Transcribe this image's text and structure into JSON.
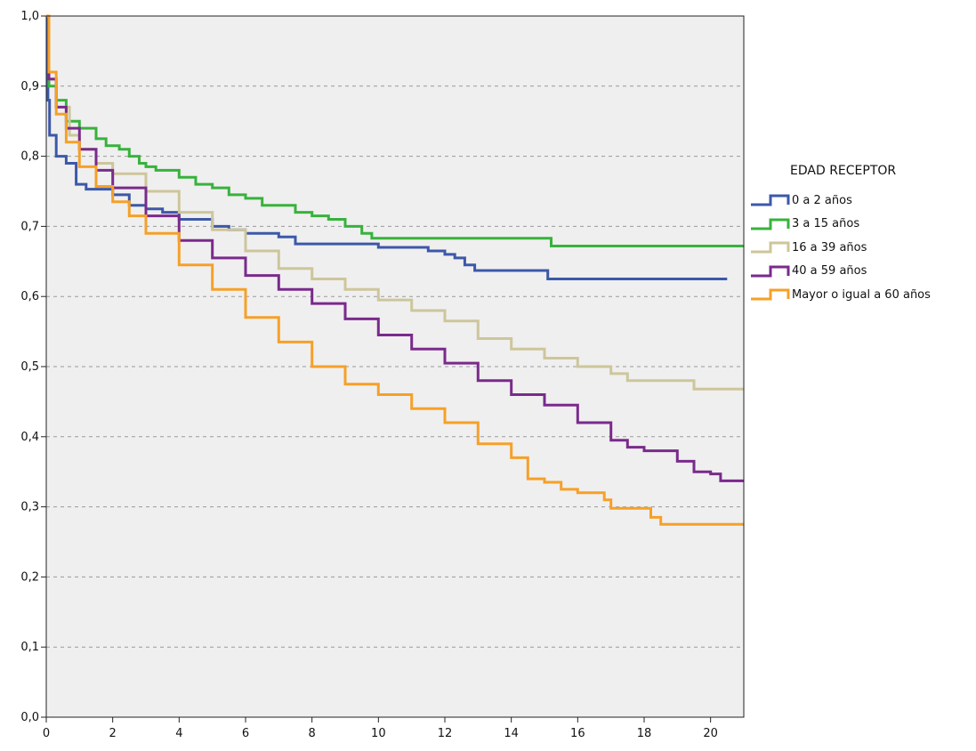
{
  "chart_data": {
    "type": "line",
    "title": "",
    "xlabel": "",
    "ylabel": "",
    "xlim": [
      0,
      21
    ],
    "ylim": [
      0.0,
      1.0
    ],
    "x_ticks": [
      "0",
      "2",
      "4",
      "6",
      "8",
      "10",
      "12",
      "14",
      "16",
      "18",
      "20"
    ],
    "y_ticks": [
      "0,0",
      "0,1",
      "0,2",
      "0,3",
      "0,4",
      "0,5",
      "0,6",
      "0,7",
      "0,8",
      "0,9",
      "1,0"
    ],
    "grid": "horizontal dashed",
    "background": "#efefef",
    "legend": {
      "title": "EDAD RECEPTOR",
      "placement": "right"
    },
    "series": [
      {
        "name": "0 a 2 años",
        "color": "#3c58a8",
        "points": [
          [
            0,
            1.0
          ],
          [
            0.05,
            0.88
          ],
          [
            0.1,
            0.83
          ],
          [
            0.3,
            0.8
          ],
          [
            0.6,
            0.79
          ],
          [
            0.9,
            0.76
          ],
          [
            1.2,
            0.753
          ],
          [
            2,
            0.745
          ],
          [
            2.5,
            0.73
          ],
          [
            3,
            0.725
          ],
          [
            3.5,
            0.72
          ],
          [
            4,
            0.71
          ],
          [
            5,
            0.7
          ],
          [
            5.5,
            0.695
          ],
          [
            6,
            0.69
          ],
          [
            7,
            0.685
          ],
          [
            7.5,
            0.675
          ],
          [
            9,
            0.675
          ],
          [
            10,
            0.67
          ],
          [
            11.2,
            0.67
          ],
          [
            11.5,
            0.665
          ],
          [
            12,
            0.66
          ],
          [
            12.3,
            0.655
          ],
          [
            12.6,
            0.645
          ],
          [
            12.9,
            0.637
          ],
          [
            15,
            0.637
          ],
          [
            15.1,
            0.625
          ],
          [
            20.5,
            0.625
          ]
        ]
      },
      {
        "name": "3 a 15 años",
        "color": "#38b23c",
        "points": [
          [
            0,
            1.0
          ],
          [
            0.08,
            0.9
          ],
          [
            0.3,
            0.88
          ],
          [
            0.6,
            0.85
          ],
          [
            1,
            0.84
          ],
          [
            1.5,
            0.825
          ],
          [
            1.8,
            0.815
          ],
          [
            2.2,
            0.81
          ],
          [
            2.5,
            0.8
          ],
          [
            2.8,
            0.79
          ],
          [
            3,
            0.785
          ],
          [
            3.3,
            0.78
          ],
          [
            4,
            0.77
          ],
          [
            4.5,
            0.76
          ],
          [
            5,
            0.755
          ],
          [
            5.5,
            0.745
          ],
          [
            6,
            0.74
          ],
          [
            6.5,
            0.73
          ],
          [
            7,
            0.73
          ],
          [
            7.5,
            0.72
          ],
          [
            8,
            0.715
          ],
          [
            8.5,
            0.71
          ],
          [
            9,
            0.7
          ],
          [
            9.5,
            0.69
          ],
          [
            9.8,
            0.683
          ],
          [
            15.1,
            0.683
          ],
          [
            15.2,
            0.672
          ],
          [
            21,
            0.672
          ]
        ]
      },
      {
        "name": "16 a 39 años",
        "color": "#cdc69b",
        "points": [
          [
            0,
            1.0
          ],
          [
            0.08,
            0.91
          ],
          [
            0.3,
            0.87
          ],
          [
            0.7,
            0.83
          ],
          [
            1,
            0.81
          ],
          [
            1.5,
            0.79
          ],
          [
            2,
            0.775
          ],
          [
            3,
            0.75
          ],
          [
            4,
            0.72
          ],
          [
            5,
            0.695
          ],
          [
            6,
            0.665
          ],
          [
            7,
            0.64
          ],
          [
            8,
            0.625
          ],
          [
            9,
            0.61
          ],
          [
            10,
            0.595
          ],
          [
            11,
            0.58
          ],
          [
            12,
            0.565
          ],
          [
            13,
            0.54
          ],
          [
            14,
            0.525
          ],
          [
            15,
            0.512
          ],
          [
            16,
            0.5
          ],
          [
            17,
            0.49
          ],
          [
            17.5,
            0.48
          ],
          [
            19,
            0.48
          ],
          [
            19.5,
            0.468
          ],
          [
            21,
            0.468
          ]
        ]
      },
      {
        "name": "40 a 59 años",
        "color": "#7a2a8c",
        "points": [
          [
            0,
            1.0
          ],
          [
            0.08,
            0.91
          ],
          [
            0.3,
            0.87
          ],
          [
            0.6,
            0.84
          ],
          [
            1,
            0.81
          ],
          [
            1.5,
            0.78
          ],
          [
            2,
            0.755
          ],
          [
            3,
            0.715
          ],
          [
            4,
            0.68
          ],
          [
            5,
            0.655
          ],
          [
            6,
            0.63
          ],
          [
            7,
            0.61
          ],
          [
            8,
            0.59
          ],
          [
            9,
            0.568
          ],
          [
            10,
            0.545
          ],
          [
            11,
            0.525
          ],
          [
            12,
            0.505
          ],
          [
            13,
            0.48
          ],
          [
            14,
            0.46
          ],
          [
            15,
            0.445
          ],
          [
            16,
            0.42
          ],
          [
            17,
            0.395
          ],
          [
            17.5,
            0.385
          ],
          [
            18,
            0.38
          ],
          [
            19,
            0.365
          ],
          [
            19.5,
            0.35
          ],
          [
            20,
            0.347
          ],
          [
            20.3,
            0.337
          ],
          [
            21,
            0.337
          ]
        ]
      },
      {
        "name": "Mayor o igual a 60 años",
        "color": "#f6a028",
        "points": [
          [
            0,
            1.0
          ],
          [
            0.08,
            0.92
          ],
          [
            0.3,
            0.86
          ],
          [
            0.6,
            0.82
          ],
          [
            1,
            0.785
          ],
          [
            1.5,
            0.757
          ],
          [
            2,
            0.735
          ],
          [
            2.5,
            0.715
          ],
          [
            3,
            0.69
          ],
          [
            4,
            0.645
          ],
          [
            5,
            0.61
          ],
          [
            6,
            0.57
          ],
          [
            7,
            0.535
          ],
          [
            8,
            0.5
          ],
          [
            9,
            0.475
          ],
          [
            10,
            0.46
          ],
          [
            11,
            0.44
          ],
          [
            12,
            0.42
          ],
          [
            13,
            0.39
          ],
          [
            14,
            0.37
          ],
          [
            14.5,
            0.34
          ],
          [
            15,
            0.335
          ],
          [
            15.5,
            0.325
          ],
          [
            16,
            0.32
          ],
          [
            16.8,
            0.31
          ],
          [
            17,
            0.298
          ],
          [
            18,
            0.298
          ],
          [
            18.2,
            0.285
          ],
          [
            18.5,
            0.275
          ],
          [
            21,
            0.275
          ]
        ]
      }
    ]
  }
}
